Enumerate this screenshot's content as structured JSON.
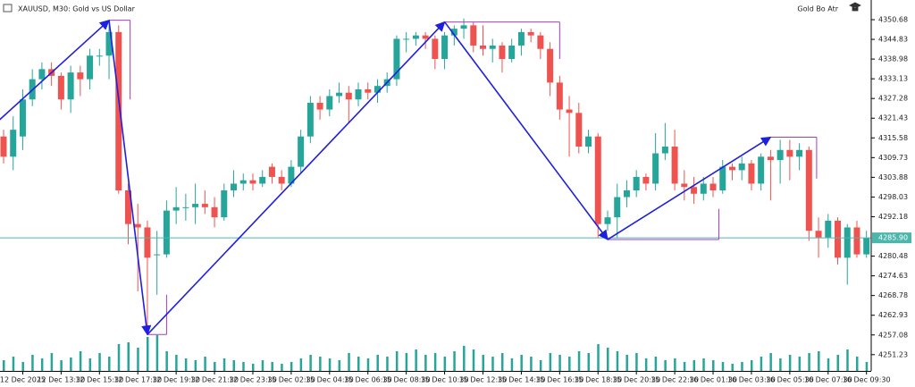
{
  "chart_data": {
    "type": "candlestick",
    "title": "XAUUSD, M30:  Gold vs US Dollar",
    "indicator": "Gold Bo Atr",
    "up_color": "#26a69a",
    "down_color": "#ef5350",
    "volume_color": "#26a69a",
    "categories": [
      null,
      null,
      "12 Dec 2025",
      null,
      null,
      null,
      "12 Dec 13:30",
      null,
      null,
      null,
      "12 Dec 15:30",
      null,
      null,
      null,
      "12 Dec 17:30",
      null,
      null,
      null,
      "12 Dec 19:30",
      null,
      null,
      null,
      "12 Dec 21:30",
      null,
      null,
      null,
      "12 Dec 23:30",
      null,
      null,
      null,
      "15 Dec 02:30",
      null,
      null,
      null,
      "15 Dec 04:30",
      null,
      null,
      null,
      "15 Dec 06:30",
      null,
      null,
      null,
      "15 Dec 08:30",
      null,
      null,
      null,
      "15 Dec 10:30",
      null,
      null,
      null,
      "15 Dec 12:30",
      null,
      null,
      null,
      "15 Dec 14:30",
      null,
      null,
      null,
      "15 Dec 16:30",
      null,
      null,
      null,
      "15 Dec 18:30",
      null,
      null,
      null,
      "15 Dec 20:30",
      null,
      null,
      null,
      "15 Dec 22:30",
      null,
      null,
      null,
      "16 Dec 01:30",
      null,
      null,
      null,
      "16 Dec 03:30",
      null,
      null,
      null,
      "16 Dec 05:30",
      null,
      null,
      null,
      "16 Dec 07:30",
      null,
      null,
      null,
      "16 Dec 09:30"
    ],
    "open": [
      4316,
      4310,
      4316,
      4327,
      4333,
      4336,
      4334,
      4327,
      4335,
      4333,
      4340,
      4340,
      4347,
      4300,
      4290,
      4289,
      4281,
      4281,
      4294,
      4295,
      4295,
      4296,
      4295,
      4292,
      4300,
      4302,
      4303,
      4302,
      4307,
      4304,
      4302,
      4307,
      4316,
      4326,
      4324,
      4328,
      4329,
      4327,
      4330,
      4329,
      4331,
      4333,
      4345,
      4345,
      4346,
      4345,
      4339,
      4346,
      4348,
      4349,
      4343,
      4342,
      4343,
      4339,
      4343,
      4347,
      4346,
      4342,
      4332,
      4324,
      4323,
      4313,
      4316,
      4290,
      4292,
      4298,
      4300,
      4304,
      4302,
      4311,
      4313,
      4302,
      4301,
      4299,
      4302,
      4300,
      4307,
      4306,
      4308,
      4302,
      4310,
      4309,
      4312,
      4310,
      4312,
      4288,
      4286,
      4291,
      4280,
      4289,
      4281
    ],
    "high": [
      4318,
      4322,
      4330,
      4336,
      4338,
      4338,
      4335,
      4337,
      4337,
      4342,
      4342,
      4350,
      4349,
      4302,
      4296,
      4291,
      4288,
      4297,
      4301,
      4299,
      4302,
      4300,
      4298,
      4302,
      4306,
      4305,
      4305,
      4306,
      4308,
      4306,
      4309,
      4318,
      4328,
      4328,
      4330,
      4332,
      4331,
      4332,
      4332,
      4333,
      4335,
      4346,
      4347,
      4347,
      4347,
      4346,
      4347,
      4349,
      4351,
      4350,
      4349,
      4345,
      4344,
      4345,
      4348,
      4348,
      4347,
      4344,
      4334,
      4328,
      4326,
      4318,
      4317,
      4294,
      4302,
      4303,
      4306,
      4305,
      4317,
      4320,
      4318,
      4306,
      4304,
      4304,
      4304,
      4309,
      4308,
      4310,
      4309,
      4311,
      4312,
      4315,
      4315,
      4314,
      4313,
      4292,
      4293,
      4292,
      4290,
      4291,
      4288
    ],
    "low": [
      4308,
      4306,
      4312,
      4325,
      4330,
      4331,
      4324,
      4323,
      4328,
      4330,
      4337,
      4333,
      4299,
      4284,
      4270,
      4257,
      4269,
      4280,
      4290,
      4291,
      4290,
      4293,
      4289,
      4291,
      4298,
      4300,
      4300,
      4301,
      4302,
      4300,
      4301,
      4305,
      4314,
      4321,
      4322,
      4326,
      4320,
      4325,
      4327,
      4326,
      4329,
      4331,
      4341,
      4343,
      4342,
      4336,
      4336,
      4343,
      4345,
      4341,
      4340,
      4338,
      4335,
      4338,
      4340,
      4344,
      4339,
      4328,
      4321,
      4310,
      4311,
      4311,
      4286,
      4288,
      4286,
      4295,
      4298,
      4300,
      4300,
      4309,
      4300,
      4297,
      4296,
      4297,
      4298,
      4299,
      4303,
      4303,
      4300,
      4300,
      4297,
      4302,
      4303,
      4306,
      4285,
      4280,
      4283,
      4278,
      4272,
      4280,
      4280
    ],
    "close": [
      4310,
      4318,
      4327,
      4333,
      4336,
      4334,
      4327,
      4335,
      4333,
      4340,
      4340,
      4347,
      4300,
      4290,
      4289,
      4280,
      4281,
      4294,
      4295,
      4295,
      4296,
      4295,
      4292,
      4300,
      4302,
      4303,
      4302,
      4304,
      4304,
      4302,
      4307,
      4316,
      4326,
      4324,
      4328,
      4329,
      4327,
      4330,
      4329,
      4331,
      4333,
      4345,
      4345,
      4346,
      4345,
      4339,
      4346,
      4348,
      4349,
      4343,
      4342,
      4343,
      4339,
      4343,
      4347,
      4346,
      4342,
      4332,
      4324,
      4323,
      4313,
      4316,
      4290,
      4292,
      4298,
      4300,
      4304,
      4302,
      4311,
      4313,
      4302,
      4301,
      4299,
      4302,
      4300,
      4307,
      4306,
      4308,
      4302,
      4310,
      4309,
      4312,
      4310,
      4312,
      4288,
      4286,
      4291,
      4280,
      4289,
      4281,
      4285.9
    ],
    "volume": [
      12,
      16,
      10,
      18,
      14,
      20,
      12,
      15,
      22,
      14,
      20,
      16,
      30,
      32,
      26,
      38,
      40,
      22,
      18,
      14,
      12,
      16,
      10,
      14,
      12,
      10,
      8,
      12,
      10,
      8,
      10,
      14,
      18,
      16,
      14,
      12,
      20,
      16,
      14,
      18,
      16,
      22,
      20,
      24,
      18,
      20,
      16,
      22,
      28,
      24,
      18,
      16,
      20,
      14,
      18,
      16,
      12,
      20,
      18,
      16,
      22,
      20,
      30,
      26,
      22,
      18,
      20,
      14,
      16,
      12,
      14,
      10,
      12,
      14,
      12,
      10,
      8,
      10,
      12,
      16,
      20,
      14,
      18,
      16,
      20,
      22,
      14,
      18,
      24,
      16,
      10
    ],
    "ylim": [
      4246.4,
      4356.52
    ],
    "yticks": [
      4350.68,
      4344.83,
      4338.98,
      4333.13,
      4327.28,
      4321.43,
      4315.58,
      4309.73,
      4303.88,
      4298.03,
      4292.18,
      4280.48,
      4274.63,
      4268.78,
      4262.93,
      4257.08,
      4251.23
    ],
    "price_line": {
      "value": 4285.9,
      "label": "4285.90",
      "color": "#4db6ac"
    },
    "zigzag": {
      "color": "#1f1fe0",
      "x": [
        -0.4,
        11,
        15,
        46,
        63,
        80
      ],
      "y": [
        4321,
        4350.5,
        4257.2,
        4350,
        4285.4,
        4315.8
      ]
    },
    "brackets": {
      "color": "#a23cc8",
      "items": [
        {
          "x": [
            11,
            13.2
          ],
          "y": [
            4350.5,
            4327
          ]
        },
        {
          "x": [
            15,
            17
          ],
          "y": [
            4257.2,
            4269
          ]
        },
        {
          "x": [
            46,
            58
          ],
          "y": [
            4350,
            4339
          ]
        },
        {
          "x": [
            63,
            74.6
          ],
          "y": [
            4285.4,
            4294.5
          ]
        },
        {
          "x": [
            80,
            84.8
          ],
          "y": [
            4315.8,
            4303.5
          ]
        }
      ]
    }
  }
}
